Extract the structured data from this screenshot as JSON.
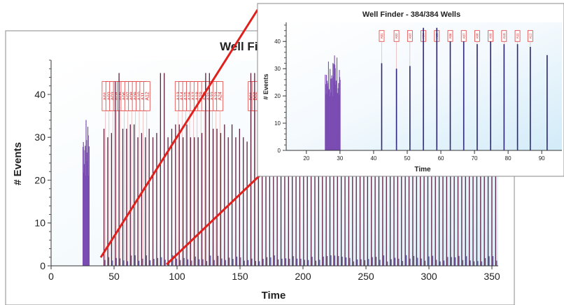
{
  "chart_data": [
    {
      "type": "bar",
      "title": "Well Finder - 3",
      "xlabel": "Time",
      "ylabel": "# Events",
      "xlim": [
        0,
        355
      ],
      "ylim": [
        0,
        48
      ],
      "xticks": [
        0,
        50,
        100,
        150,
        200,
        250,
        300,
        350
      ],
      "yticks": [
        0,
        10,
        20,
        30,
        40
      ],
      "background": "gradient-light-blue",
      "well_labels": [
        "A01",
        "A02",
        "A03",
        "A04",
        "A05",
        "A06",
        "A07",
        "A08",
        "A09",
        "A10",
        "A11",
        "A12",
        "A13",
        "A14",
        "A15",
        "A16",
        "A17",
        "A18",
        "A19",
        "A20",
        "A21",
        "A22",
        "A23",
        "A24",
        "B01",
        "B02"
      ],
      "well_label_centers": [
        43,
        46,
        49,
        52,
        55,
        58,
        61,
        64,
        67,
        70,
        73,
        76,
        101,
        104,
        107,
        110,
        113,
        116,
        119,
        122,
        125,
        128,
        131,
        134,
        159,
        162
      ],
      "pre_plate_burst": {
        "x_start": 25,
        "x_end": 30,
        "peak": 36
      },
      "peaks": {
        "x_start": 42,
        "spacing": 2.99,
        "count": 105,
        "values_pattern": [
          32,
          30,
          31,
          45,
          45,
          32,
          32,
          33,
          33,
          30,
          33,
          30
        ]
      }
    },
    {
      "type": "bar",
      "title": "Well Finder - 384/384 Wells",
      "xlabel": "Time",
      "ylabel": "# Events",
      "xlim": [
        14,
        96
      ],
      "ylim": [
        0,
        47
      ],
      "xticks": [
        20,
        30,
        40,
        50,
        60,
        70,
        80,
        90
      ],
      "yticks": [
        0,
        10,
        20,
        30,
        40
      ],
      "well_labels": [
        "A01",
        "A02",
        "A03",
        "A04",
        "A05",
        "A06",
        "A07",
        "A08",
        "A09",
        "A10",
        "A11",
        "A12"
      ],
      "well_label_centers": [
        42.4,
        46.8,
        50.8,
        54.8,
        58.8,
        62.8,
        66.8,
        70.8,
        74.8,
        78.8,
        82.8,
        86.6
      ],
      "pre_plate_burst": {
        "x_start": 25.5,
        "x_end": 30,
        "peak": 36
      },
      "peaks": [
        {
          "x": 42.4,
          "y": 32
        },
        {
          "x": 46.8,
          "y": 30
        },
        {
          "x": 50.8,
          "y": 31
        },
        {
          "x": 54.8,
          "y": 45
        },
        {
          "x": 58.8,
          "y": 45
        },
        {
          "x": 62.8,
          "y": 40
        },
        {
          "x": 66.8,
          "y": 40
        },
        {
          "x": 70.8,
          "y": 39
        },
        {
          "x": 74.8,
          "y": 40
        },
        {
          "x": 78.8,
          "y": 39
        },
        {
          "x": 82.8,
          "y": 39
        },
        {
          "x": 86.6,
          "y": 38
        },
        {
          "x": 91.6,
          "y": 35
        }
      ]
    }
  ]
}
